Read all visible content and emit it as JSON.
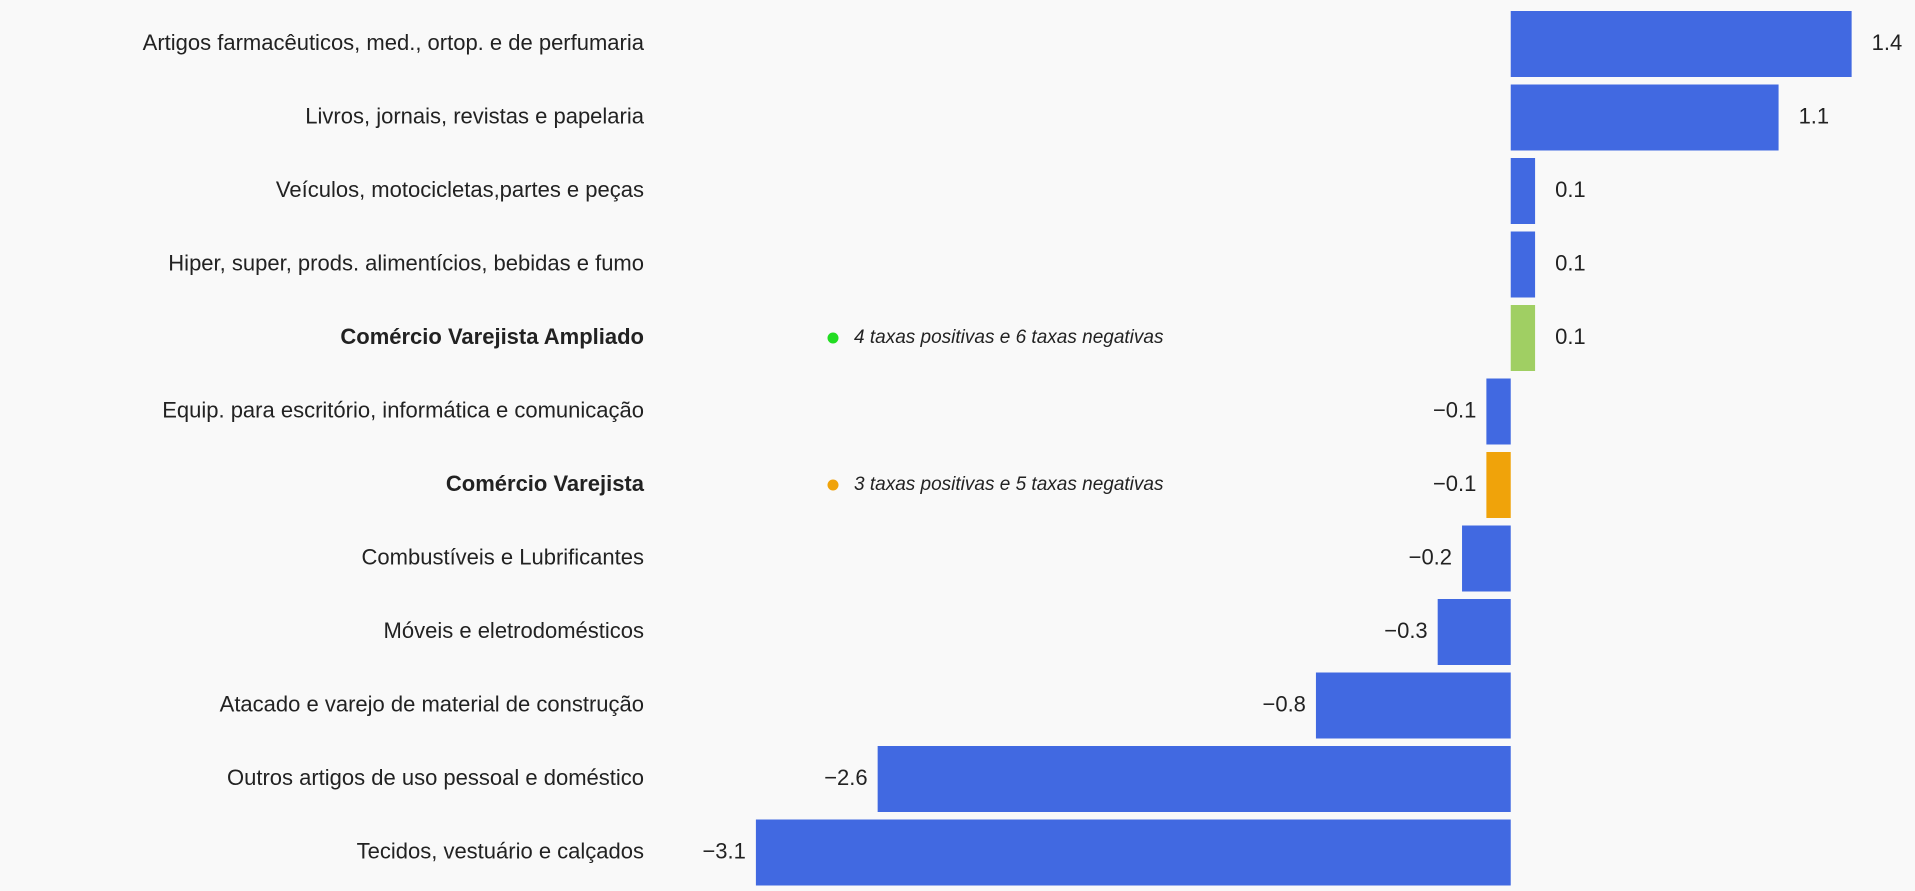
{
  "chart_data": {
    "type": "bar",
    "orientation": "horizontal",
    "categories": [
      "Artigos farmacêuticos, med., ortop. e de perfumaria",
      "Livros, jornais, revistas e papelaria",
      "Veículos, motocicletas,partes e peças",
      "Hiper, super, prods.  alimentícios, bebidas e fumo",
      "Comércio Varejista Ampliado",
      "Equip. para escritório, informática e comunicação",
      "Comércio Varejista",
      "Combustíveis e Lubrificantes",
      "Móveis e eletrodomésticos",
      "Atacado e varejo de material de construção",
      "Outros artigos de uso pessoal e doméstico",
      "Tecidos, vestuário e calçados"
    ],
    "values": [
      1.4,
      1.1,
      0.1,
      0.1,
      0.1,
      -0.1,
      -0.1,
      -0.2,
      -0.3,
      -0.8,
      -2.6,
      -3.1
    ],
    "value_labels": [
      "1.4",
      "1.1",
      "0.1",
      "0.1",
      "0.1",
      "−0.1",
      "−0.1",
      "−0.2",
      "−0.3",
      "−0.8",
      "−2.6",
      "−3.1"
    ],
    "colors": [
      "#4169e1",
      "#4169e1",
      "#4169e1",
      "#4169e1",
      "#a0cf63",
      "#4169e1",
      "#f0a30a",
      "#4169e1",
      "#4169e1",
      "#4169e1",
      "#4169e1",
      "#4169e1"
    ],
    "notes": [
      null,
      null,
      null,
      null,
      "4 taxas positivas e 6 taxas negativas",
      null,
      "3 taxas positivas e 5 taxas negativas",
      null,
      null,
      null,
      null,
      null
    ],
    "note_colors": [
      null,
      null,
      null,
      null,
      "#22dd22",
      null,
      "#f0a30a",
      null,
      null,
      null,
      null,
      null
    ],
    "xlim": [
      -3.5,
      1.65
    ]
  }
}
